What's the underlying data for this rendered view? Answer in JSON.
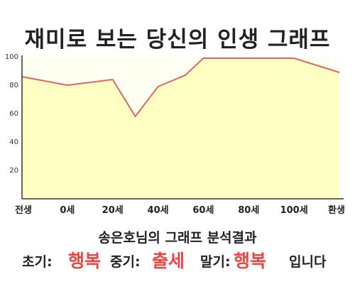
{
  "title": "재미로 보는 당신의 인생 그래프",
  "subtitle": "송은호님의 그래프 분석결과",
  "result": {
    "early_label": "초기:",
    "early_value": "행복",
    "middle_label": "중기:",
    "middle_value": "출세",
    "late_label": "말기:",
    "late_value": "행복",
    "suffix": "입니다"
  },
  "colors": {
    "line": "#e06666",
    "fill": "#ffffc4",
    "plot_background": "#fffff2",
    "highlight": "#ee4444"
  },
  "chart_data": {
    "type": "area",
    "x_tick_labels": [
      "전생",
      "0세",
      "20세",
      "40세",
      "60세",
      "80세",
      "100세",
      "환생"
    ],
    "y_ticks": [
      20,
      40,
      60,
      80,
      100
    ],
    "ylim": [
      0,
      100
    ],
    "grid": false,
    "points": [
      {
        "x": -20,
        "y": 86
      },
      {
        "x": 0,
        "y": 80
      },
      {
        "x": 20,
        "y": 84
      },
      {
        "x": 30,
        "y": 58
      },
      {
        "x": 40,
        "y": 79
      },
      {
        "x": 52,
        "y": 87
      },
      {
        "x": 60,
        "y": 99
      },
      {
        "x": 100,
        "y": 99
      },
      {
        "x": 120,
        "y": 89
      }
    ],
    "xlim": [
      -20,
      120
    ]
  }
}
